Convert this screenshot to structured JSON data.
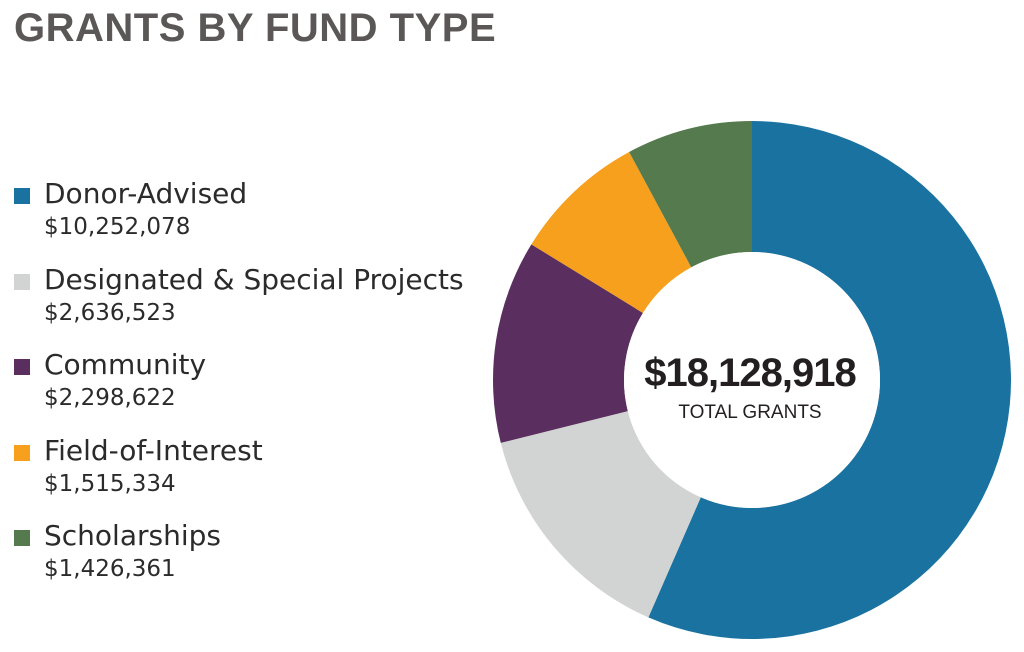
{
  "title": "GRANTS BY FUND TYPE",
  "center": {
    "total": "$18,128,918",
    "label": "TOTAL GRANTS"
  },
  "legend": [
    {
      "label": "Donor-Advised",
      "value_text": "$10,252,078",
      "color": "#1a72a1"
    },
    {
      "label": "Designated & Special Projects",
      "value_text": "$2,636,523",
      "color": "#d2d3d3"
    },
    {
      "label": "Community",
      "value_text": "$2,298,622",
      "color": "#5a2f5f"
    },
    {
      "label": "Field-of-Interest",
      "value_text": "$1,515,334",
      "color": "#f6a01d"
    },
    {
      "label": "Scholarships",
      "value_text": "$1,426,361",
      "color": "#547a4e"
    }
  ],
  "chart_data": {
    "type": "pie",
    "title": "GRANTS BY FUND TYPE",
    "donut": true,
    "start": "top",
    "direction": "clockwise",
    "legend_position": "left",
    "center_text": "$18,128,918",
    "center_subtext": "TOTAL GRANTS",
    "total": 18128918,
    "categories": [
      "Donor-Advised",
      "Designated & Special Projects",
      "Community",
      "Field-of-Interest",
      "Scholarships"
    ],
    "values": [
      10252078,
      2636523,
      2298622,
      1515334,
      1426361
    ],
    "colors": [
      "#1a72a1",
      "#d2d3d3",
      "#5a2f5f",
      "#f6a01d",
      "#547a4e"
    ]
  }
}
